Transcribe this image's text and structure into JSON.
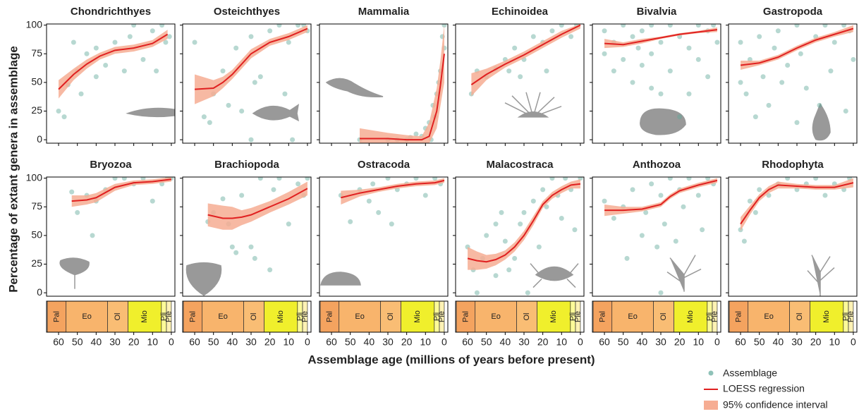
{
  "chart_data": {
    "type": "scatter",
    "y_label": "Percentage of extant genera in assemblage",
    "x_label": "Assemblage age (millions of years before present)",
    "xlim": [
      66.4,
      -1.9
    ],
    "ylim": [
      -3,
      101
    ],
    "xticks": [
      60,
      50,
      40,
      30,
      20,
      10,
      0
    ],
    "yticks": [
      0,
      25,
      50,
      75,
      100
    ],
    "points": {
      "name": "Assemblage",
      "color": "#5fa89a"
    },
    "loess": {
      "name": "LOESS regression",
      "color": "#e02020"
    },
    "ci": {
      "name": "95% confidence interval",
      "color": "#f6ad93"
    },
    "timescale": [
      {
        "label": "Pal",
        "start": 66,
        "end": 56,
        "color": "#f4a35f"
      },
      {
        "label": "Eo",
        "start": 56,
        "end": 33.9,
        "color": "#f8b46c"
      },
      {
        "label": "Ol",
        "start": 33.9,
        "end": 23,
        "color": "#f9bd74"
      },
      {
        "label": "Mio",
        "start": 23,
        "end": 5.3,
        "color": "#f0ef2c"
      },
      {
        "label": "Pli",
        "start": 5.3,
        "end": 2.6,
        "color": "#fcfa98"
      },
      {
        "label": "Ple",
        "start": 2.6,
        "end": 0,
        "color": "#fef2b4"
      }
    ],
    "panels": [
      {
        "title": "Chondrichthyes",
        "x": [
          60,
          57,
          55,
          50,
          48,
          45,
          40,
          40,
          35,
          30,
          25,
          20,
          15,
          10,
          8,
          5,
          3,
          1,
          52,
          22
        ],
        "y": [
          25,
          20,
          48,
          60,
          40,
          75,
          80,
          55,
          65,
          85,
          60,
          100,
          70,
          95,
          60,
          100,
          85,
          90,
          85,
          90
        ],
        "loess_x": [
          60,
          52,
          45,
          38,
          30,
          20,
          10,
          2
        ],
        "loess_y": [
          44,
          57,
          66,
          73,
          78,
          80,
          84,
          92
        ],
        "ci_lower": [
          36,
          52,
          62,
          70,
          75,
          77,
          81,
          88
        ],
        "ci_upper": [
          52,
          62,
          70,
          76,
          81,
          83,
          87,
          96
        ]
      },
      {
        "title": "Osteichthyes",
        "x": [
          60,
          55,
          52,
          50,
          45,
          42,
          38,
          35,
          30,
          28,
          25,
          20,
          15,
          12,
          10,
          5,
          2,
          0,
          30,
          8
        ],
        "y": [
          85,
          20,
          15,
          40,
          60,
          30,
          80,
          25,
          90,
          50,
          55,
          95,
          100,
          40,
          85,
          100,
          100,
          95,
          0,
          0
        ],
        "loess_x": [
          60,
          50,
          45,
          40,
          30,
          20,
          10,
          0
        ],
        "loess_y": [
          44,
          45,
          50,
          57,
          75,
          85,
          90,
          97
        ],
        "ci_lower": [
          31,
          38,
          45,
          53,
          71,
          82,
          87,
          94
        ],
        "ci_upper": [
          57,
          52,
          55,
          61,
          79,
          88,
          93,
          100
        ]
      },
      {
        "title": "Mammalia",
        "x": [
          45,
          30,
          20,
          15,
          12,
          10,
          8,
          6,
          5,
          4,
          2,
          1,
          0,
          0,
          3,
          25,
          18,
          7
        ],
        "y": [
          0,
          0,
          0,
          5,
          3,
          10,
          15,
          30,
          20,
          40,
          60,
          90,
          100,
          80,
          50,
          0,
          2,
          0
        ],
        "loess_x": [
          45,
          30,
          20,
          12,
          8,
          4,
          2,
          0
        ],
        "loess_y": [
          1,
          1,
          0,
          0,
          3,
          25,
          48,
          75
        ],
        "ci_lower": [
          -3,
          -3,
          -3,
          -3,
          -3,
          10,
          30,
          50
        ],
        "ci_upper": [
          10,
          6,
          4,
          3,
          15,
          45,
          70,
          100
        ]
      },
      {
        "title": "Echinoidea",
        "x": [
          58,
          55,
          50,
          45,
          40,
          38,
          35,
          30,
          25,
          20,
          15,
          10,
          5,
          2,
          32,
          18
        ],
        "y": [
          40,
          60,
          55,
          62,
          70,
          60,
          80,
          70,
          90,
          85,
          95,
          100,
          90,
          100,
          55,
          60
        ],
        "loess_x": [
          58,
          50,
          40,
          30,
          20,
          10,
          0
        ],
        "loess_y": [
          48,
          57,
          66,
          74,
          83,
          92,
          100
        ],
        "ci_lower": [
          38,
          52,
          63,
          71,
          80,
          89,
          97
        ],
        "ci_upper": [
          58,
          62,
          69,
          77,
          86,
          95,
          101
        ]
      },
      {
        "title": "Bivalvia",
        "x": [
          60,
          60,
          55,
          55,
          50,
          50,
          45,
          45,
          42,
          40,
          40,
          35,
          35,
          30,
          30,
          25,
          25,
          20,
          20,
          15,
          10,
          10,
          5,
          5,
          2,
          0,
          35,
          15
        ],
        "y": [
          75,
          95,
          85,
          60,
          100,
          70,
          90,
          50,
          80,
          95,
          65,
          100,
          75,
          85,
          40,
          100,
          60,
          90,
          20,
          80,
          100,
          70,
          95,
          55,
          100,
          85,
          45,
          40
        ],
        "loess_x": [
          60,
          50,
          40,
          30,
          20,
          10,
          0
        ],
        "loess_y": [
          84,
          83,
          86,
          89,
          92,
          94,
          96
        ],
        "ci_lower": [
          80,
          81,
          84,
          88,
          91,
          93,
          94
        ],
        "ci_upper": [
          88,
          85,
          88,
          90,
          93,
          95,
          98
        ]
      },
      {
        "title": "Gastropoda",
        "x": [
          60,
          60,
          57,
          55,
          52,
          50,
          48,
          45,
          42,
          40,
          38,
          35,
          30,
          30,
          28,
          25,
          20,
          18,
          15,
          12,
          10,
          5,
          4,
          2,
          0
        ],
        "y": [
          50,
          85,
          40,
          70,
          20,
          90,
          55,
          30,
          80,
          95,
          50,
          65,
          100,
          15,
          75,
          45,
          90,
          30,
          100,
          60,
          85,
          100,
          25,
          95,
          70
        ],
        "loess_x": [
          60,
          50,
          40,
          30,
          20,
          10,
          0
        ],
        "loess_y": [
          65,
          67,
          72,
          80,
          87,
          92,
          97
        ],
        "ci_lower": [
          61,
          65,
          70,
          78,
          85,
          90,
          94
        ],
        "ci_upper": [
          69,
          69,
          74,
          82,
          89,
          94,
          100
        ]
      },
      {
        "title": "Bryozoa",
        "x": [
          53,
          50,
          45,
          42,
          40,
          35,
          30,
          25,
          20,
          15,
          10,
          5,
          2,
          0
        ],
        "y": [
          88,
          70,
          85,
          50,
          80,
          90,
          100,
          100,
          95,
          100,
          80,
          95,
          100,
          100
        ],
        "loess_x": [
          53,
          45,
          40,
          30,
          20,
          10,
          0
        ],
        "loess_y": [
          80,
          81,
          83,
          92,
          96,
          97,
          99
        ],
        "ci_lower": [
          75,
          77,
          79,
          89,
          94,
          95,
          97
        ],
        "ci_upper": [
          85,
          85,
          87,
          95,
          98,
          99,
          101
        ]
      },
      {
        "title": "Brachiopoda",
        "x": [
          53,
          50,
          45,
          42,
          40,
          38,
          35,
          30,
          28,
          25,
          20,
          18,
          15,
          10,
          5,
          2,
          0
        ],
        "y": [
          62,
          70,
          82,
          60,
          40,
          35,
          85,
          40,
          30,
          100,
          20,
          90,
          100,
          60,
          95,
          85,
          100
        ],
        "loess_x": [
          53,
          45,
          40,
          35,
          30,
          20,
          10,
          0
        ],
        "loess_y": [
          68,
          65,
          65,
          66,
          68,
          75,
          82,
          91
        ],
        "ci_lower": [
          58,
          55,
          55,
          59,
          62,
          70,
          77,
          85
        ],
        "ci_upper": [
          78,
          76,
          75,
          72,
          74,
          80,
          88,
          97
        ]
      },
      {
        "title": "Ostracoda",
        "x": [
          55,
          50,
          45,
          40,
          38,
          35,
          30,
          28,
          25,
          20,
          15,
          10,
          5,
          2
        ],
        "y": [
          85,
          62,
          90,
          80,
          95,
          70,
          100,
          60,
          90,
          95,
          100,
          85,
          100,
          95
        ],
        "loess_x": [
          55,
          45,
          35,
          25,
          15,
          5,
          0
        ],
        "loess_y": [
          83,
          87,
          90,
          93,
          95,
          96,
          98
        ],
        "ci_lower": [
          77,
          84,
          88,
          91,
          93,
          94,
          96
        ],
        "ci_upper": [
          89,
          90,
          92,
          95,
          97,
          98,
          100
        ]
      },
      {
        "title": "Malacostraca",
        "x": [
          60,
          57,
          55,
          52,
          50,
          45,
          45,
          42,
          40,
          38,
          35,
          32,
          30,
          28,
          25,
          22,
          20,
          18,
          15,
          12,
          10,
          8,
          5,
          3,
          0
        ],
        "y": [
          40,
          20,
          0,
          30,
          50,
          15,
          60,
          70,
          45,
          20,
          30,
          60,
          70,
          0,
          80,
          40,
          90,
          75,
          100,
          85,
          65,
          100,
          90,
          55,
          100
        ],
        "loess_x": [
          60,
          55,
          50,
          45,
          40,
          35,
          30,
          25,
          20,
          15,
          10,
          5,
          0
        ],
        "loess_y": [
          30,
          28,
          27,
          29,
          33,
          40,
          50,
          63,
          77,
          85,
          90,
          94,
          95
        ],
        "ci_lower": [
          20,
          20,
          21,
          24,
          29,
          36,
          46,
          59,
          74,
          82,
          87,
          91,
          91
        ],
        "ci_upper": [
          40,
          36,
          33,
          34,
          37,
          44,
          54,
          67,
          80,
          88,
          93,
          97,
          99
        ]
      },
      {
        "title": "Anthozoa",
        "x": [
          60,
          55,
          50,
          48,
          45,
          40,
          38,
          35,
          32,
          30,
          28,
          25,
          22,
          20,
          18,
          15,
          10,
          8,
          5,
          2,
          30
        ],
        "y": [
          80,
          65,
          75,
          30,
          90,
          50,
          70,
          95,
          40,
          85,
          60,
          100,
          45,
          90,
          75,
          100,
          85,
          55,
          100,
          95,
          0
        ],
        "loess_x": [
          60,
          50,
          40,
          30,
          25,
          20,
          10,
          0
        ],
        "loess_y": [
          72,
          72,
          73,
          77,
          84,
          89,
          94,
          98
        ],
        "ci_lower": [
          67,
          69,
          71,
          75,
          82,
          87,
          92,
          96
        ],
        "ci_upper": [
          77,
          75,
          75,
          79,
          86,
          91,
          96,
          100
        ]
      },
      {
        "title": "Rhodophyta",
        "x": [
          60,
          58,
          55,
          52,
          50,
          45,
          40,
          35,
          30,
          25,
          20,
          15,
          10,
          5,
          2
        ],
        "y": [
          55,
          45,
          80,
          70,
          90,
          85,
          95,
          100,
          90,
          95,
          100,
          85,
          95,
          90,
          100
        ],
        "loess_x": [
          60,
          55,
          50,
          45,
          40,
          30,
          20,
          10,
          0
        ],
        "loess_y": [
          60,
          72,
          83,
          90,
          94,
          93,
          92,
          92,
          96
        ],
        "ci_lower": [
          54,
          68,
          80,
          87,
          91,
          91,
          90,
          90,
          92
        ],
        "ci_upper": [
          66,
          76,
          86,
          93,
          97,
          95,
          94,
          94,
          100
        ]
      }
    ]
  }
}
